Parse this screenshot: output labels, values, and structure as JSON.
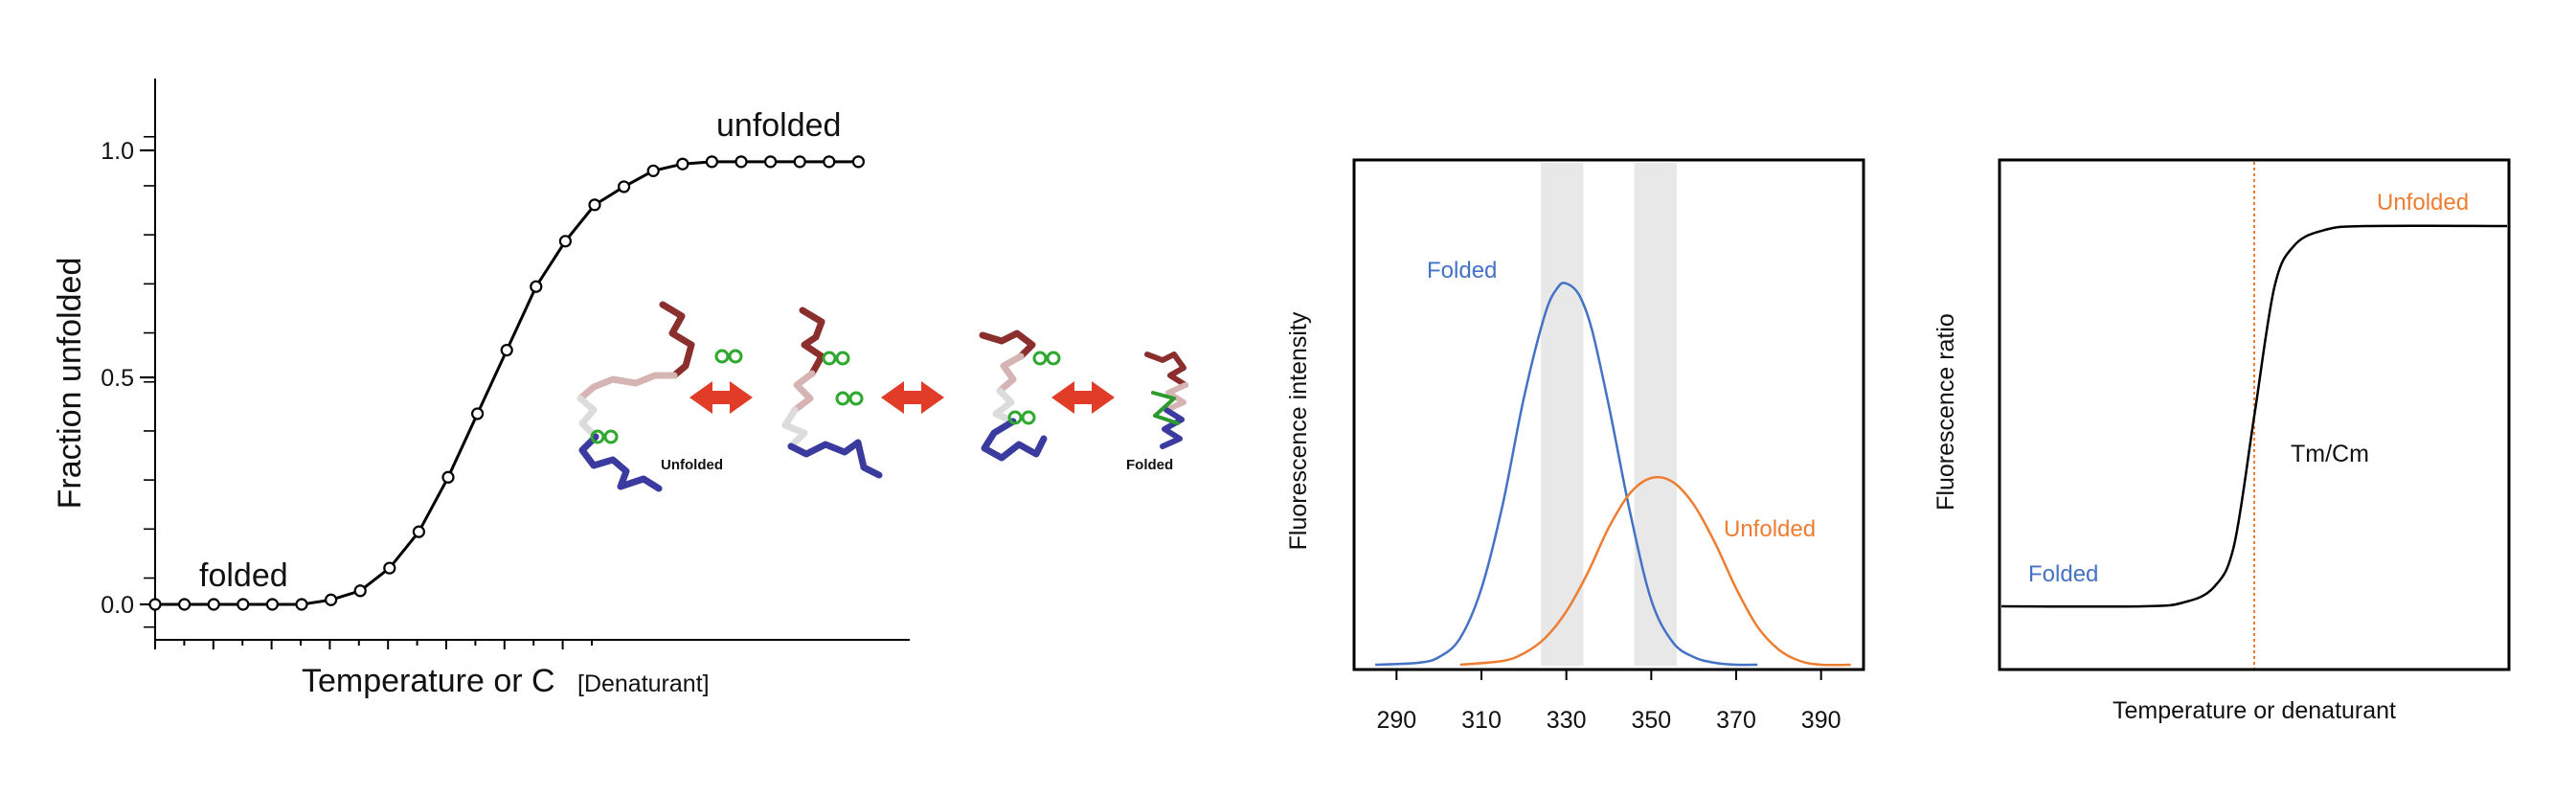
{
  "colors": {
    "folded": "#4472c4",
    "unfolded": "#ed7d31",
    "band": "#e8e8e8",
    "curve": "#000000",
    "arrow": "#e03c28"
  },
  "chart_data": [
    {
      "type": "line",
      "ylabel": "Fraction unfolded",
      "xlabel_main": "Temperature or C",
      "xlabel_sub": "[Denaturant]",
      "ylim": [
        -0.06,
        1.16
      ],
      "yticks": [
        {
          "value": 0.0,
          "label": "0.0"
        },
        {
          "value": 0.5,
          "label": "0.5"
        },
        {
          "value": 1.0,
          "label": "1.0"
        }
      ],
      "x": [
        0,
        1,
        2,
        3,
        4,
        5,
        6,
        7,
        8,
        9,
        10,
        11,
        12,
        13,
        14,
        15,
        16,
        17,
        18,
        19,
        20,
        21,
        22,
        23,
        24
      ],
      "values": [
        0.0,
        0.0,
        0.0,
        0.0,
        0.0,
        0.0,
        0.01,
        0.03,
        0.08,
        0.16,
        0.28,
        0.42,
        0.56,
        0.7,
        0.8,
        0.88,
        0.92,
        0.955,
        0.97,
        0.975,
        0.975,
        0.975,
        0.975,
        0.975,
        0.975
      ],
      "annotations": {
        "low": "folded",
        "high": "unfolded"
      },
      "inset": {
        "labels": [
          "Unfolded",
          "Folded"
        ]
      }
    },
    {
      "type": "line",
      "ylabel": "Fluorescence intensity",
      "xlim": [
        280,
        400
      ],
      "xticks": [
        290,
        310,
        330,
        350,
        370,
        390
      ],
      "shaded_bands": [
        [
          324,
          334
        ],
        [
          346,
          356
        ]
      ],
      "series": [
        {
          "name": "Folded",
          "color": "#4472c4",
          "x": [
            285,
            295,
            300,
            305,
            310,
            315,
            320,
            325,
            328,
            330,
            333,
            336,
            340,
            345,
            350,
            355,
            360,
            365,
            370,
            375
          ],
          "values": [
            0.0,
            0.005,
            0.02,
            0.07,
            0.2,
            0.42,
            0.7,
            0.92,
            0.99,
            1.0,
            0.97,
            0.88,
            0.68,
            0.4,
            0.17,
            0.06,
            0.02,
            0.005,
            0.0,
            0.0
          ]
        },
        {
          "name": "Unfolded",
          "color": "#ed7d31",
          "x": [
            305,
            315,
            320,
            325,
            330,
            335,
            340,
            345,
            350,
            355,
            360,
            365,
            370,
            375,
            380,
            385,
            390,
            397
          ],
          "values": [
            0.0,
            0.01,
            0.03,
            0.07,
            0.14,
            0.24,
            0.36,
            0.45,
            0.49,
            0.48,
            0.42,
            0.32,
            0.2,
            0.1,
            0.04,
            0.01,
            0.0,
            0.0
          ]
        }
      ]
    },
    {
      "type": "line",
      "ylabel": "Fluorescence ratio",
      "xlabel": "Temperature or denaturant",
      "midpoint_label": "Tm/Cm",
      "series": [
        {
          "name": "Folded",
          "color": "#4472c4"
        },
        {
          "name": "Unfolded",
          "color": "#ed7d31"
        }
      ],
      "x": [
        0,
        0.28,
        0.36,
        0.42,
        0.46,
        0.5,
        0.54,
        0.58,
        0.64,
        0.72,
        1.0
      ],
      "values": [
        0.0,
        0.0,
        0.01,
        0.05,
        0.16,
        0.5,
        0.84,
        0.95,
        0.99,
        1.0,
        1.0
      ],
      "midpoint_x": 0.5
    }
  ]
}
